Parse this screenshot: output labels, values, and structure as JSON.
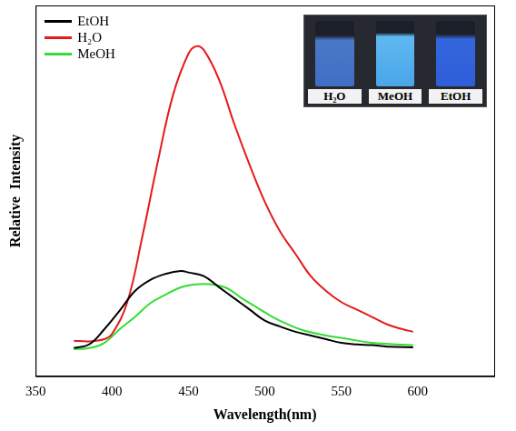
{
  "chart_data": {
    "type": "line",
    "x_label": "Wavelength(nm)",
    "y_label": "Relative  Intensity",
    "xlim": [
      350,
      650
    ],
    "xticks": [
      350,
      400,
      450,
      500,
      550,
      600
    ],
    "ylim": [
      0,
      100
    ],
    "tick_labels": "x",
    "grid": false,
    "legend": "upper left",
    "inset_labels": [
      "H₂O",
      "MeOH",
      "EtOH"
    ],
    "series": [
      {
        "name": "EtOH",
        "color": "#000000",
        "x": [
          375,
          385,
          395,
          405,
          415,
          425,
          435,
          445,
          450,
          460,
          470,
          480,
          490,
          500,
          510,
          520,
          530,
          540,
          550,
          560,
          570,
          580,
          597
        ],
        "values": [
          7.6,
          8.6,
          12.7,
          17.7,
          23,
          26,
          27.6,
          28.4,
          28,
          27,
          24,
          21,
          18,
          15,
          13.4,
          12,
          11,
          10,
          9,
          8.6,
          8.4,
          8,
          7.8
        ]
      },
      {
        "name": "H₂O",
        "color": "#e41a1c",
        "x": [
          375,
          385,
          395,
          400,
          410,
          420,
          430,
          440,
          450,
          455,
          460,
          470,
          480,
          490,
          500,
          510,
          520,
          530,
          540,
          550,
          560,
          570,
          580,
          590,
          597
        ],
        "values": [
          9.6,
          9.4,
          10,
          11.4,
          20,
          38,
          58,
          76,
          87,
          89,
          88,
          80,
          68,
          57,
          47,
          39,
          33,
          27,
          23,
          20,
          18,
          16,
          14,
          12.7,
          12
        ]
      },
      {
        "name": "MeOH",
        "color": "#33dd33",
        "x": [
          375,
          385,
          395,
          405,
          415,
          425,
          435,
          445,
          455,
          465,
          475,
          485,
          495,
          505,
          515,
          525,
          540,
          555,
          570,
          585,
          597
        ],
        "values": [
          7.3,
          7.6,
          9,
          12.7,
          16,
          19.7,
          22,
          24,
          24.8,
          24.8,
          23.8,
          21,
          18.5,
          16,
          14,
          12.4,
          11,
          10,
          9,
          8.6,
          8.4
        ]
      }
    ]
  }
}
